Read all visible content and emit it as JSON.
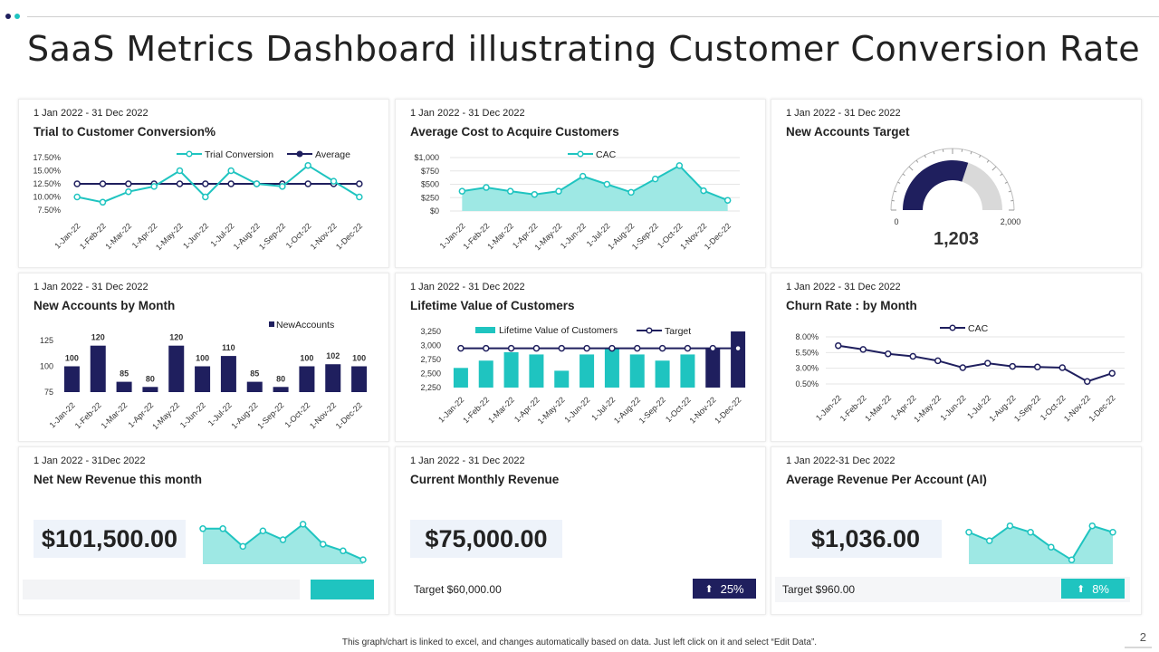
{
  "title": "SaaS Metrics Dashboard illustrating Customer Conversion Rate",
  "colors": {
    "teal": "#1FC4C0",
    "teal_fill": "#9EE8E4",
    "navy": "#1F1F5E",
    "grey": "#D9D9D9"
  },
  "footer": "This graph/chart is linked to excel, and changes automatically based on data. Just left click on it and select “Edit Data”.",
  "page_number": "2",
  "cards": {
    "trial": {
      "date": "1 Jan 2022 - 31 Dec 2022",
      "title": "Trial to Customer Conversion%"
    },
    "cac": {
      "date": "1 Jan 2022 - 31 Dec 2022",
      "title": "Average Cost to Acquire Customers"
    },
    "target": {
      "date": "1 Jan 2022 - 31 Dec 2022",
      "title": "New Accounts  Target"
    },
    "newacc": {
      "date": "1 Jan 2022 - 31 Dec 2022",
      "title": "New Accounts  by Month"
    },
    "ltv": {
      "date": "1 Jan 2022 - 31 Dec 2022",
      "title": "Lifetime Value of Customers"
    },
    "churn": {
      "date": "1 Jan 2022 - 31 Dec 2022",
      "title": "Churn Rate : by Month"
    },
    "netrev": {
      "date": "1 Jan 2022 - 31Dec 2022",
      "title": "Net New Revenue this month",
      "value": "$101,500.00"
    },
    "mrr": {
      "date": "1 Jan 2022 - 31 Dec 2022",
      "title": "Current Monthly Revenue",
      "value": "$75,000.00",
      "target": "Target  $60,000.00",
      "badge_icon": "⬆",
      "badge_text": "25%"
    },
    "arpa": {
      "date": "1 Jan 2022-31 Dec 2022",
      "title": "Average Revenue Per Account  (AI)",
      "value": "$1,036.00",
      "target": "Target  $960.00",
      "badge_icon": "⬆",
      "badge_text": "8%"
    }
  },
  "chart_data": [
    {
      "id": "trial",
      "type": "line",
      "categories": [
        "1-Jan-22",
        "1-Feb-22",
        "1-Mar-22",
        "1-Apr-22",
        "1-May-22",
        "1-Jun-22",
        "1-Jul-22",
        "1-Aug-22",
        "1-Sep-22",
        "1-Oct-22",
        "1-Nov-22",
        "1-Dec-22"
      ],
      "series": [
        {
          "name": "Trial Conversion",
          "values": [
            10.0,
            9.0,
            11.0,
            12.0,
            15.0,
            10.0,
            15.0,
            12.5,
            12.0,
            16.0,
            13.0,
            10.0
          ]
        },
        {
          "name": "Average",
          "values": [
            12.5,
            12.5,
            12.5,
            12.5,
            12.5,
            12.5,
            12.5,
            12.5,
            12.5,
            12.5,
            12.5,
            12.5
          ]
        }
      ],
      "yticks": [
        "17.50%",
        "15.00%",
        "12.50%",
        "10.00%",
        "7.50%"
      ],
      "ylim": [
        7.5,
        17.5
      ]
    },
    {
      "id": "cac",
      "type": "area",
      "categories": [
        "1-Jan-22",
        "1-Feb-22",
        "1-Mar-22",
        "1-Apr-22",
        "1-May-22",
        "1-Jun-22",
        "1-Jul-22",
        "1-Aug-22",
        "1-Sep-22",
        "1-Oct-22",
        "1-Nov-22",
        "1-Dec-22"
      ],
      "series": [
        {
          "name": "CAC",
          "values": [
            370,
            440,
            370,
            310,
            370,
            650,
            500,
            350,
            600,
            850,
            380,
            200
          ]
        }
      ],
      "yticks": [
        "$1,000",
        "$750",
        "$500",
        "$250",
        "$0"
      ],
      "ylim": [
        0,
        1000
      ]
    },
    {
      "id": "target",
      "type": "gauge",
      "min": 0,
      "max": 2000,
      "value": 1203,
      "min_label": "0",
      "max_label": "2,000",
      "value_label": "1,203"
    },
    {
      "id": "newacc",
      "type": "bar",
      "categories": [
        "1-Jan-22",
        "1-Feb-22",
        "1-Mar-22",
        "1-Apr-22",
        "1-May-22",
        "1-Jun-22",
        "1-Jul-22",
        "1-Aug-22",
        "1-Sep-22",
        "1-Oct-22",
        "1-Nov-22",
        "1-Dec-22"
      ],
      "series": [
        {
          "name": "New Accounts",
          "values": [
            100,
            120,
            85,
            80,
            120,
            100,
            110,
            85,
            80,
            100,
            102,
            100
          ]
        }
      ],
      "data_labels": [
        "100",
        "120",
        "85",
        "80",
        "120",
        "100",
        "110",
        "85",
        "80",
        "100",
        "102",
        "100"
      ],
      "yticks": [
        "125",
        "100",
        "75"
      ],
      "ylim": [
        75,
        125
      ]
    },
    {
      "id": "ltv",
      "type": "bar",
      "categories": [
        "1-Jan-22",
        "1-Feb-22",
        "1-Mar-22",
        "1-Apr-22",
        "1-May-22",
        "1-Jun-22",
        "1-Jul-22",
        "1-Aug-22",
        "1-Sep-22",
        "1-Oct-22",
        "1-Nov-22",
        "1-Dec-22"
      ],
      "series": [
        {
          "name": "Lifetime Value of Customers",
          "values": [
            2600,
            2730,
            2880,
            2840,
            2550,
            2840,
            2950,
            2840,
            2730,
            2840,
            2960,
            3250
          ]
        },
        {
          "name": "Target",
          "values": [
            2950,
            2950,
            2950,
            2950,
            2950,
            2950,
            2950,
            2950,
            2950,
            2950,
            2950,
            2950
          ]
        }
      ],
      "highlight_last": 2,
      "yticks": [
        "3,250",
        "3,000",
        "2,750",
        "2,500",
        "2,250"
      ],
      "ylim": [
        2250,
        3250
      ]
    },
    {
      "id": "churn",
      "type": "line",
      "categories": [
        "1-Jan-22",
        "1-Feb-22",
        "1-Mar-22",
        "1-Apr-22",
        "1-May-22",
        "1-Jun-22",
        "1-Jul-22",
        "1-Aug-22",
        "1-Sep-22",
        "1-Oct-22",
        "1-Nov-22",
        "1-Dec-22"
      ],
      "series": [
        {
          "name": "CAC",
          "values": [
            6.6,
            6.0,
            5.3,
            4.9,
            4.2,
            3.1,
            3.8,
            3.3,
            3.2,
            3.1,
            0.9,
            2.2
          ]
        }
      ],
      "yticks": [
        "8.00%",
        "5.50%",
        "3.00%",
        "0.50%"
      ],
      "ylim": [
        0.5,
        8.0
      ]
    },
    {
      "id": "spark-netrev",
      "type": "area",
      "series": [
        {
          "name": "Net New Revenue",
          "values": [
            80,
            80,
            40,
            75,
            55,
            90,
            45,
            30,
            10
          ]
        }
      ],
      "ylim": [
        0,
        100
      ]
    },
    {
      "id": "spark-arpa",
      "type": "area",
      "series": [
        {
          "name": "ARPA",
          "values": [
            75,
            55,
            90,
            75,
            40,
            10,
            90,
            75
          ]
        }
      ],
      "ylim": [
        0,
        100
      ]
    }
  ]
}
